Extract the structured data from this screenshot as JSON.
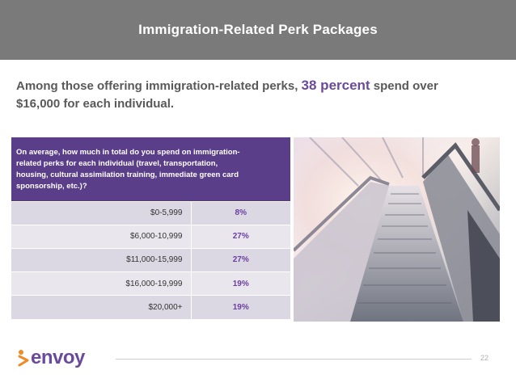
{
  "header": {
    "title": "Immigration-Related Perk Packages"
  },
  "headline": {
    "before": "Among those offering immigration-related perks, ",
    "highlight": "38 percent",
    "after": " spend over $16,000 for each individual."
  },
  "table": {
    "question": "On average, how much in total do you spend on immigration-related perks for each individual (travel, transportation, housing, cultural assimilation training, immediate green card sponsorship, etc.)?",
    "rows": [
      {
        "range": "$0-5,999",
        "percent": "8%"
      },
      {
        "range": "$6,000-10,999",
        "percent": "27%"
      },
      {
        "range": "$11,000-15,999",
        "percent": "27%"
      },
      {
        "range": "$16,000-19,999",
        "percent": "19%"
      },
      {
        "range": "$20,000+",
        "percent": "19%"
      }
    ]
  },
  "footer": {
    "logo_text": "envoy",
    "page_number": "22"
  },
  "colors": {
    "header_bg": "#7a7a7a",
    "accent_purple": "#5b3e8a",
    "percent_text": "#6a3fa0",
    "logo_orange": "#f08a24"
  }
}
